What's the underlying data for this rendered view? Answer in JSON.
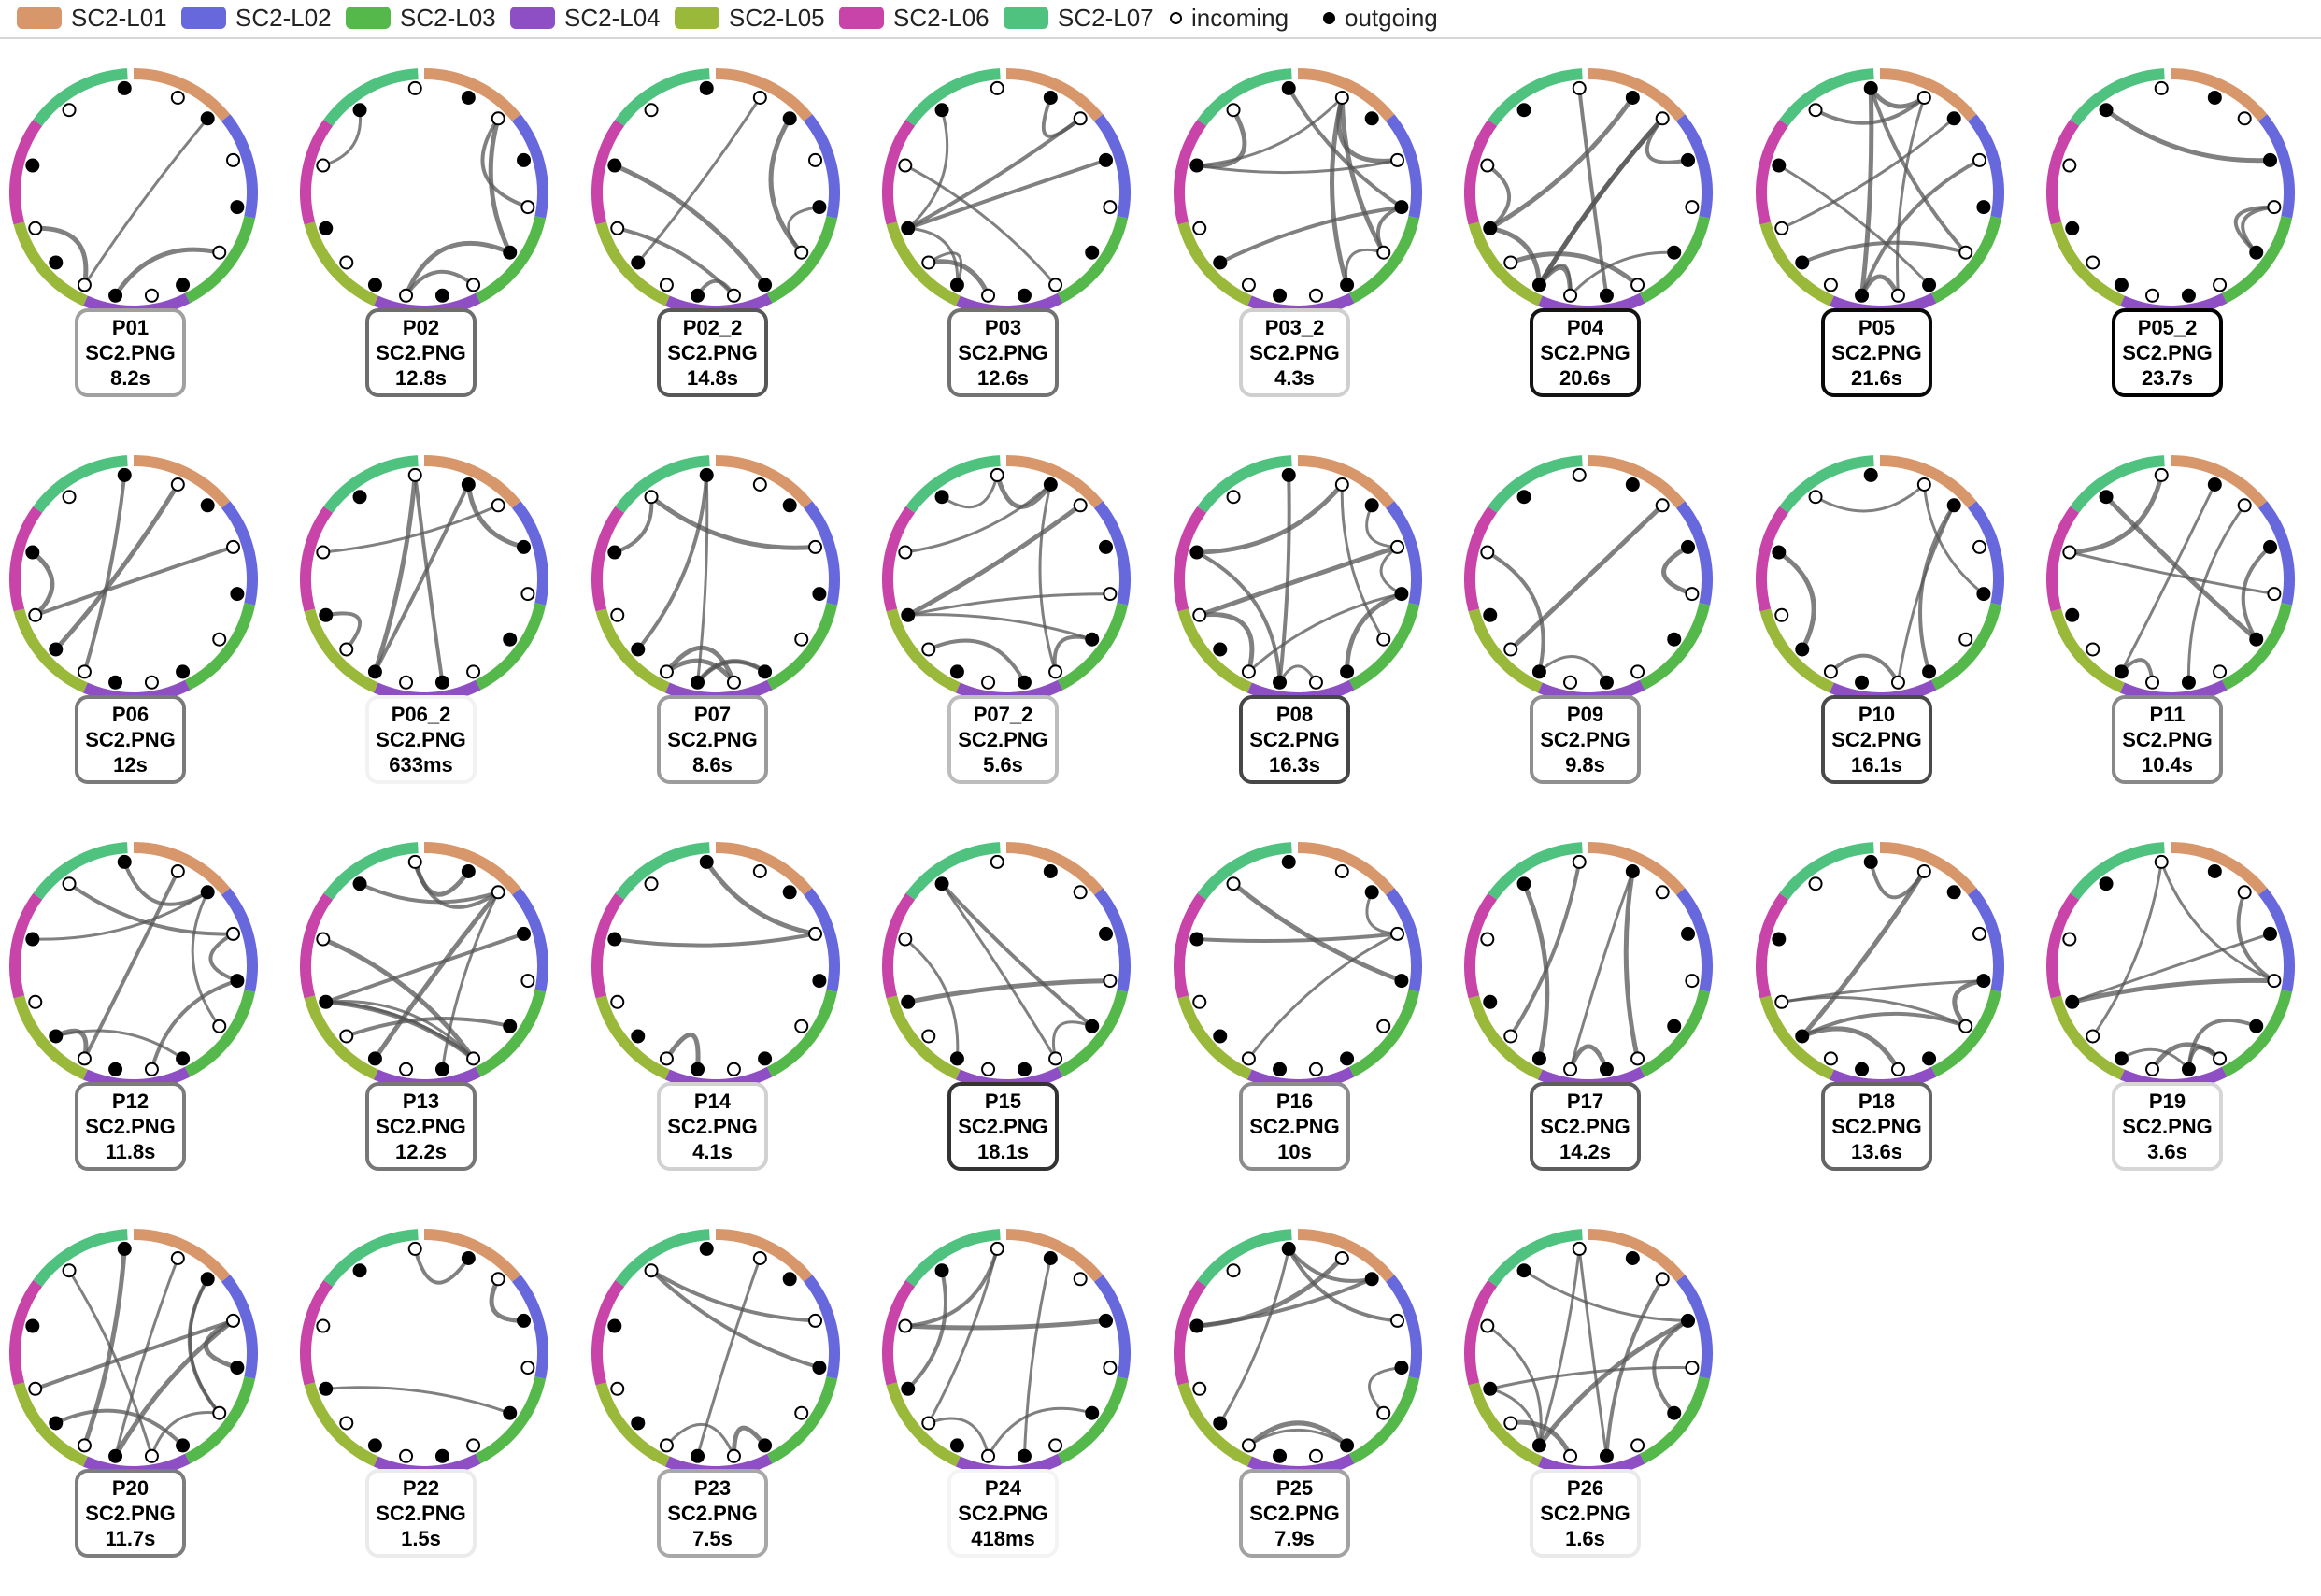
{
  "legend": {
    "items": [
      {
        "label": "SC2-L01",
        "color": "#d8966b"
      },
      {
        "label": "SC2-L02",
        "color": "#6668dc"
      },
      {
        "label": "SC2-L03",
        "color": "#55b84a"
      },
      {
        "label": "SC2-L04",
        "color": "#8e4fc4"
      },
      {
        "label": "SC2-L05",
        "color": "#9ab83a"
      },
      {
        "label": "SC2-L06",
        "color": "#c944a8"
      },
      {
        "label": "SC2-L07",
        "color": "#4ec27e"
      }
    ],
    "incoming_label": "incoming",
    "outgoing_label": "outgoing"
  },
  "participants": [
    {
      "id": "P01",
      "image": "SC2.PNG",
      "duration": "8.2s",
      "border": "#a0a0a0"
    },
    {
      "id": "P02",
      "image": "SC2.PNG",
      "duration": "12.8s",
      "border": "#6e6e6e"
    },
    {
      "id": "P02_2",
      "image": "SC2.PNG",
      "duration": "14.8s",
      "border": "#575757"
    },
    {
      "id": "P03",
      "image": "SC2.PNG",
      "duration": "12.6s",
      "border": "#727272"
    },
    {
      "id": "P03_2",
      "image": "SC2.PNG",
      "duration": "4.3s",
      "border": "#cfcfcf"
    },
    {
      "id": "P04",
      "image": "SC2.PNG",
      "duration": "20.6s",
      "border": "#141414"
    },
    {
      "id": "P05",
      "image": "SC2.PNG",
      "duration": "21.6s",
      "border": "#0a0a0a"
    },
    {
      "id": "P05_2",
      "image": "SC2.PNG",
      "duration": "23.7s",
      "border": "#000000"
    },
    {
      "id": "P06",
      "image": "SC2.PNG",
      "duration": "12s",
      "border": "#7a7a7a"
    },
    {
      "id": "P06_2",
      "image": "SC2.PNG",
      "duration": "633ms",
      "border": "#f2f2f2"
    },
    {
      "id": "P07",
      "image": "SC2.PNG",
      "duration": "8.6s",
      "border": "#9c9c9c"
    },
    {
      "id": "P07_2",
      "image": "SC2.PNG",
      "duration": "5.6s",
      "border": "#bdbdbd"
    },
    {
      "id": "P08",
      "image": "SC2.PNG",
      "duration": "16.3s",
      "border": "#474747"
    },
    {
      "id": "P09",
      "image": "SC2.PNG",
      "duration": "9.8s",
      "border": "#8f8f8f"
    },
    {
      "id": "P10",
      "image": "SC2.PNG",
      "duration": "16.1s",
      "border": "#4a4a4a"
    },
    {
      "id": "P11",
      "image": "SC2.PNG",
      "duration": "10.4s",
      "border": "#888888"
    },
    {
      "id": "P12",
      "image": "SC2.PNG",
      "duration": "11.8s",
      "border": "#7c7c7c"
    },
    {
      "id": "P13",
      "image": "SC2.PNG",
      "duration": "12.2s",
      "border": "#777777"
    },
    {
      "id": "P14",
      "image": "SC2.PNG",
      "duration": "4.1s",
      "border": "#d1d1d1"
    },
    {
      "id": "P15",
      "image": "SC2.PNG",
      "duration": "18.1s",
      "border": "#333333"
    },
    {
      "id": "P16",
      "image": "SC2.PNG",
      "duration": "10s",
      "border": "#8c8c8c"
    },
    {
      "id": "P17",
      "image": "SC2.PNG",
      "duration": "14.2s",
      "border": "#5e5e5e"
    },
    {
      "id": "P18",
      "image": "SC2.PNG",
      "duration": "13.6s",
      "border": "#656565"
    },
    {
      "id": "P19",
      "image": "SC2.PNG",
      "duration": "3.6s",
      "border": "#d6d6d6"
    },
    {
      "id": "P20",
      "image": "SC2.PNG",
      "duration": "11.7s",
      "border": "#7d7d7d"
    },
    {
      "id": "P22",
      "image": "SC2.PNG",
      "duration": "1.5s",
      "border": "#ebebeb"
    },
    {
      "id": "P23",
      "image": "SC2.PNG",
      "duration": "7.5s",
      "border": "#a8a8a8"
    },
    {
      "id": "P24",
      "image": "SC2.PNG",
      "duration": "418ms",
      "border": "#f4f4f4"
    },
    {
      "id": "P25",
      "image": "SC2.PNG",
      "duration": "7.9s",
      "border": "#a2a2a2"
    },
    {
      "id": "P26",
      "image": "SC2.PNG",
      "duration": "1.6s",
      "border": "#eaeaea"
    }
  ]
}
